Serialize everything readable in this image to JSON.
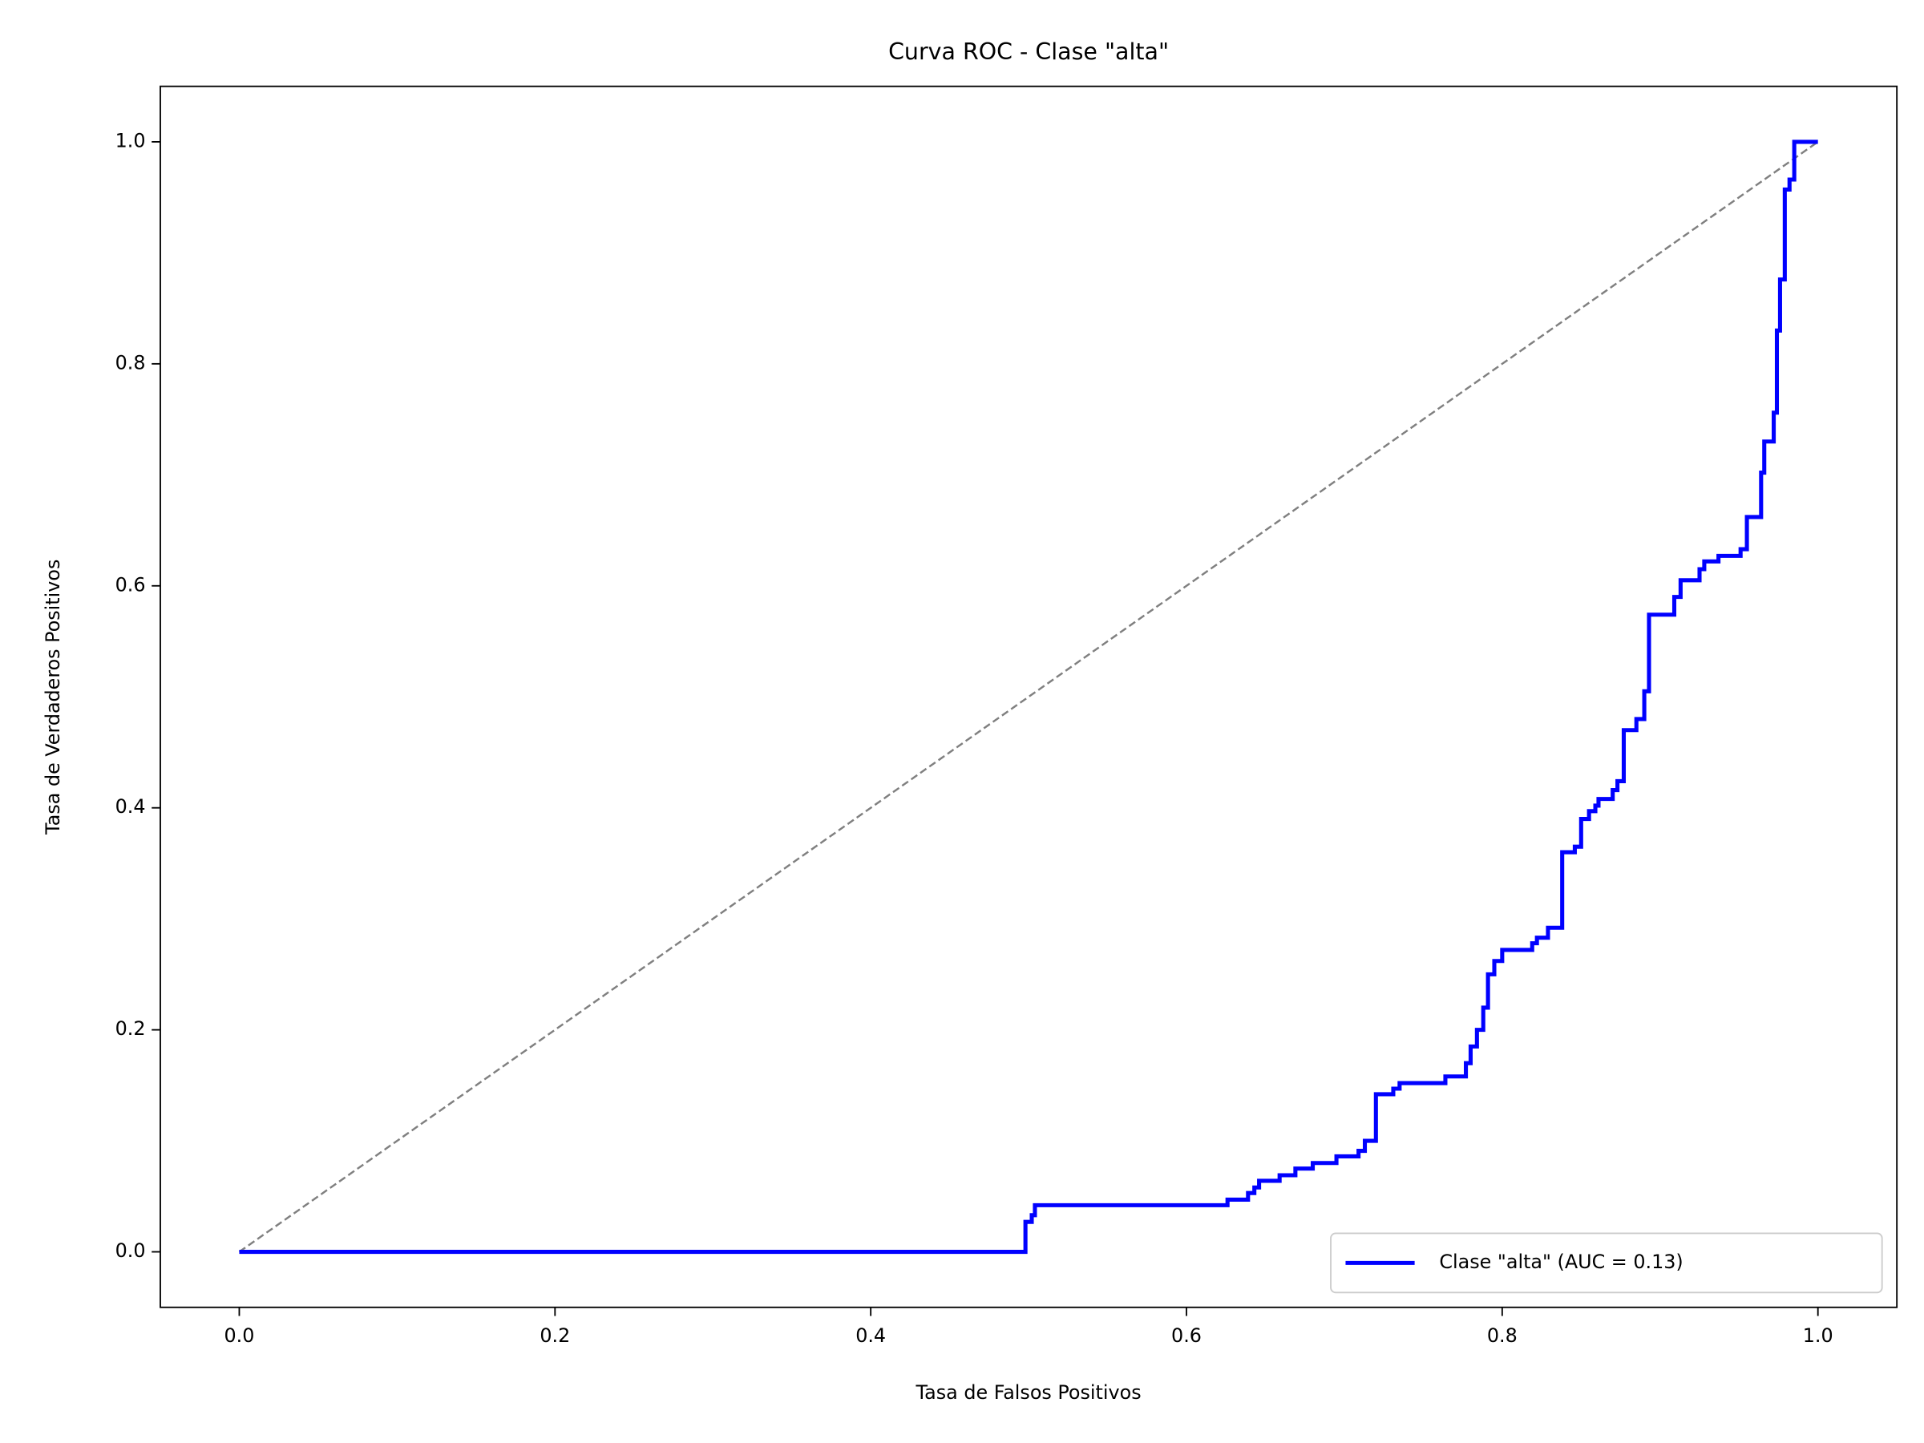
{
  "chart_data": {
    "type": "line",
    "title": "Curva ROC - Clase \"alta\"",
    "x_label": "Tasa de Falsos Positivos",
    "y_label": "Tasa de Verdaderos Positivos",
    "xlim": [
      -0.05,
      1.05
    ],
    "ylim": [
      -0.05,
      1.05
    ],
    "xticks": [
      {
        "value": 0,
        "label": "0.0"
      },
      0.2,
      0.4,
      0.6,
      0.8,
      {
        "value": 1,
        "label": "1.0"
      }
    ],
    "yticks": [
      {
        "value": 0,
        "label": "0.0"
      },
      0.2,
      0.4,
      0.6,
      0.8,
      {
        "value": 1,
        "label": "1.0"
      }
    ],
    "legend_loc": "lower right",
    "series": [
      {
        "name": "Clase \"alta\" (AUC = 0.13)",
        "color": "#0000ff",
        "x": [
          0,
          0.498,
          0.498,
          0.502,
          0.502,
          0.504,
          0.504,
          0.626,
          0.626,
          0.639,
          0.639,
          0.643,
          0.643,
          0.646,
          0.646,
          0.659,
          0.659,
          0.669,
          0.669,
          0.68,
          0.68,
          0.695,
          0.695,
          0.709,
          0.709,
          0.713,
          0.713,
          0.72,
          0.72,
          0.731,
          0.731,
          0.735,
          0.735,
          0.764,
          0.764,
          0.777,
          0.777,
          0.78,
          0.78,
          0.784,
          0.784,
          0.788,
          0.788,
          0.791,
          0.791,
          0.795,
          0.795,
          0.8,
          0.8,
          0.819,
          0.819,
          0.822,
          0.822,
          0.829,
          0.829,
          0.838,
          0.838,
          0.846,
          0.846,
          0.85,
          0.85,
          0.855,
          0.855,
          0.859,
          0.859,
          0.861,
          0.861,
          0.87,
          0.87,
          0.873,
          0.873,
          0.877,
          0.877,
          0.885,
          0.885,
          0.89,
          0.89,
          0.893,
          0.893,
          0.909,
          0.909,
          0.913,
          0.913,
          0.925,
          0.925,
          0.928,
          0.928,
          0.937,
          0.937,
          0.951,
          0.951,
          0.955,
          0.955,
          0.964,
          0.964,
          0.966,
          0.966,
          0.972,
          0.972,
          0.974,
          0.974,
          0.976,
          0.976,
          0.979,
          0.979,
          0.982,
          0.982,
          0.985,
          0.985,
          1.0
        ],
        "values": [
          0,
          0,
          0.027,
          0.027,
          0.033,
          0.033,
          0.042,
          0.042,
          0.047,
          0.047,
          0.053,
          0.053,
          0.058,
          0.058,
          0.064,
          0.064,
          0.069,
          0.069,
          0.075,
          0.075,
          0.08,
          0.08,
          0.086,
          0.086,
          0.091,
          0.091,
          0.1,
          0.1,
          0.142,
          0.142,
          0.147,
          0.147,
          0.152,
          0.152,
          0.158,
          0.158,
          0.17,
          0.17,
          0.185,
          0.185,
          0.2,
          0.2,
          0.22,
          0.22,
          0.25,
          0.25,
          0.262,
          0.262,
          0.272,
          0.272,
          0.278,
          0.278,
          0.283,
          0.283,
          0.292,
          0.292,
          0.36,
          0.36,
          0.365,
          0.365,
          0.39,
          0.39,
          0.397,
          0.397,
          0.402,
          0.402,
          0.408,
          0.408,
          0.416,
          0.416,
          0.424,
          0.424,
          0.47,
          0.47,
          0.48,
          0.48,
          0.505,
          0.505,
          0.574,
          0.574,
          0.59,
          0.59,
          0.605,
          0.605,
          0.615,
          0.615,
          0.622,
          0.622,
          0.627,
          0.627,
          0.633,
          0.633,
          0.662,
          0.662,
          0.702,
          0.702,
          0.73,
          0.73,
          0.756,
          0.756,
          0.83,
          0.83,
          0.876,
          0.876,
          0.957,
          0.957,
          0.966,
          0.966,
          1.0,
          1.0
        ]
      }
    ],
    "reference_line": {
      "x": [
        0,
        1
      ],
      "values": [
        0,
        1
      ],
      "color": "#808080",
      "dashed": true
    }
  }
}
